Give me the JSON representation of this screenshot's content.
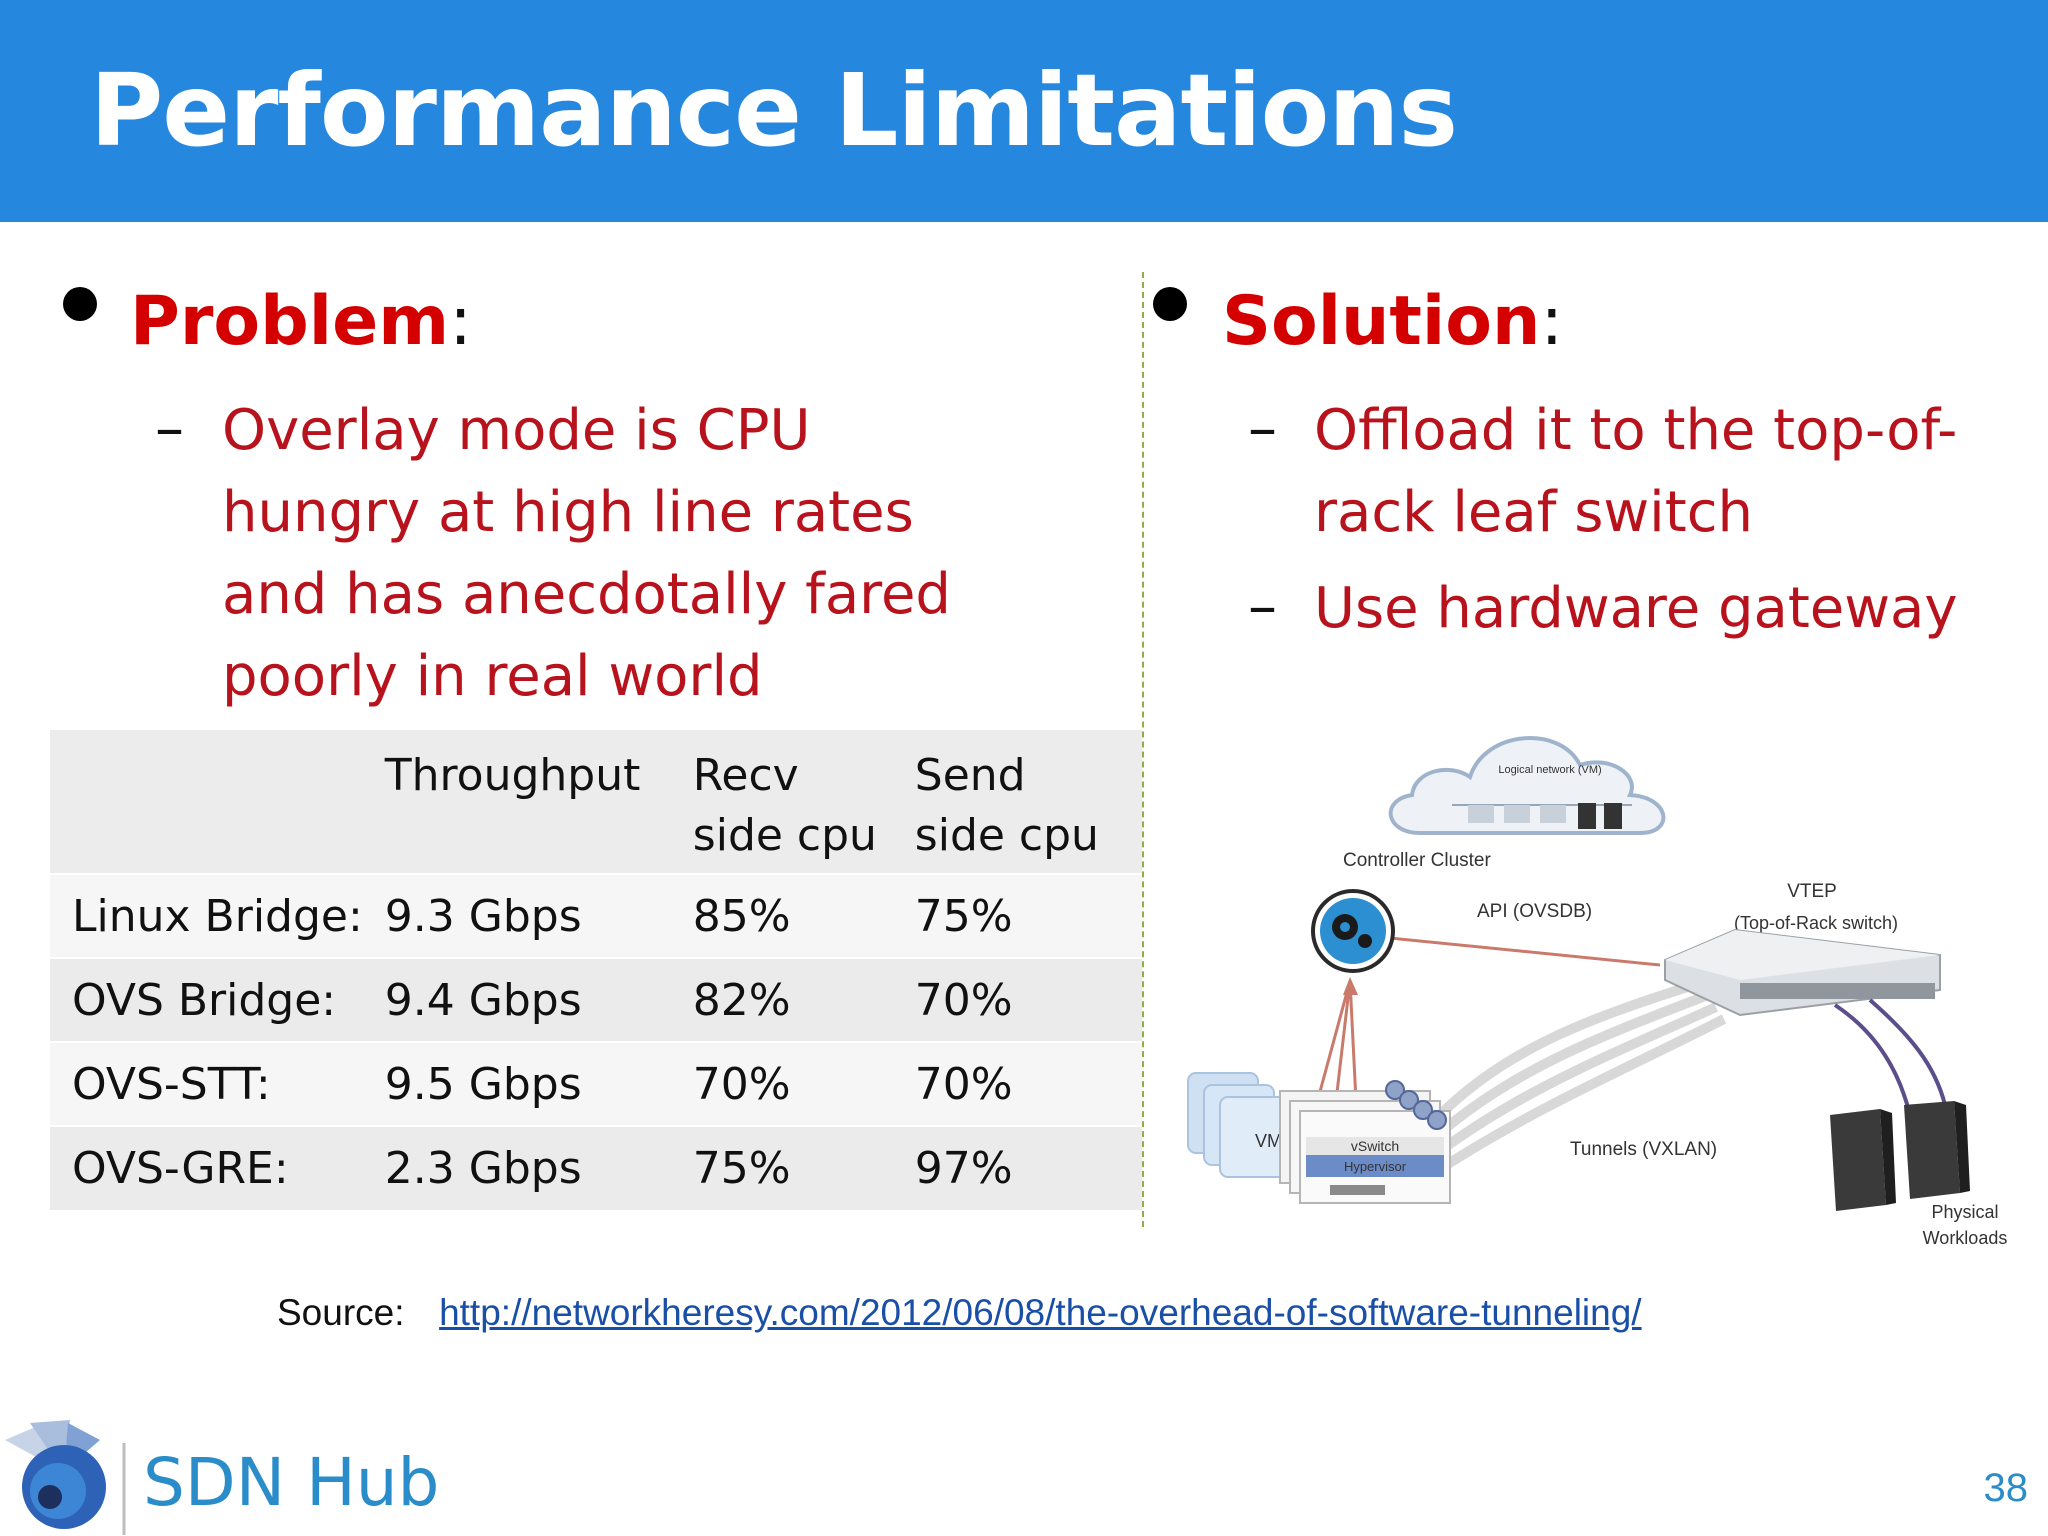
{
  "slide": {
    "title": "Performance Limitations",
    "page_number": "38"
  },
  "problem": {
    "heading": "Problem",
    "colon": ":",
    "dash": "–",
    "lines": [
      "Overlay mode is CPU",
      "hungry at high line rates",
      "and has anecdotally fared",
      "poorly in real world"
    ]
  },
  "solution": {
    "heading": "Solution",
    "colon": ":",
    "dash": "–",
    "item1_lines": [
      "Offload it to the top-of-",
      "rack leaf switch"
    ],
    "item2": "Use hardware gateway"
  },
  "table": {
    "headers": [
      {
        "l1": "",
        "l2": ""
      },
      {
        "l1": "Throughput",
        "l2": ""
      },
      {
        "l1": "Recv",
        "l2": "side cpu"
      },
      {
        "l1": "Send",
        "l2": "side cpu"
      }
    ],
    "rows": [
      [
        "Linux Bridge:",
        "9.3 Gbps",
        "85%",
        "75%"
      ],
      [
        "OVS Bridge:",
        "9.4 Gbps",
        "82%",
        "70%"
      ],
      [
        "OVS-STT:",
        "9.5 Gbps",
        "70%",
        "70%"
      ],
      [
        "OVS-GRE:",
        "2.3 Gbps",
        "75%",
        "97%"
      ]
    ]
  },
  "diagram": {
    "cloud_label": "Logical network (VM)",
    "controller_cluster": "Controller Cluster",
    "api": "API (OVSDB)",
    "vtep": "VTEP",
    "vtep_sub": "(Top-of-Rack switch)",
    "tunnels": "Tunnels (VXLAN)",
    "physical": "Physical",
    "workloads": "Workloads",
    "vm": "VM",
    "vswitch": "vSwitch",
    "hypervisor": "Hypervisor"
  },
  "source": {
    "label": "Source:",
    "url": "http://networkheresy.com/2012/06/08/the-overhead-of-software-tunneling/"
  },
  "brand": {
    "name": "SDN Hub",
    "title_bar_color": "#2587de",
    "accent_red": "#d40000",
    "brand_blue": "#2a8cc8"
  },
  "icons": [
    "bullet-icon",
    "gear-icon",
    "sdn-hub-logo-icon",
    "server-icon",
    "switch-icon",
    "cloud-icon"
  ]
}
